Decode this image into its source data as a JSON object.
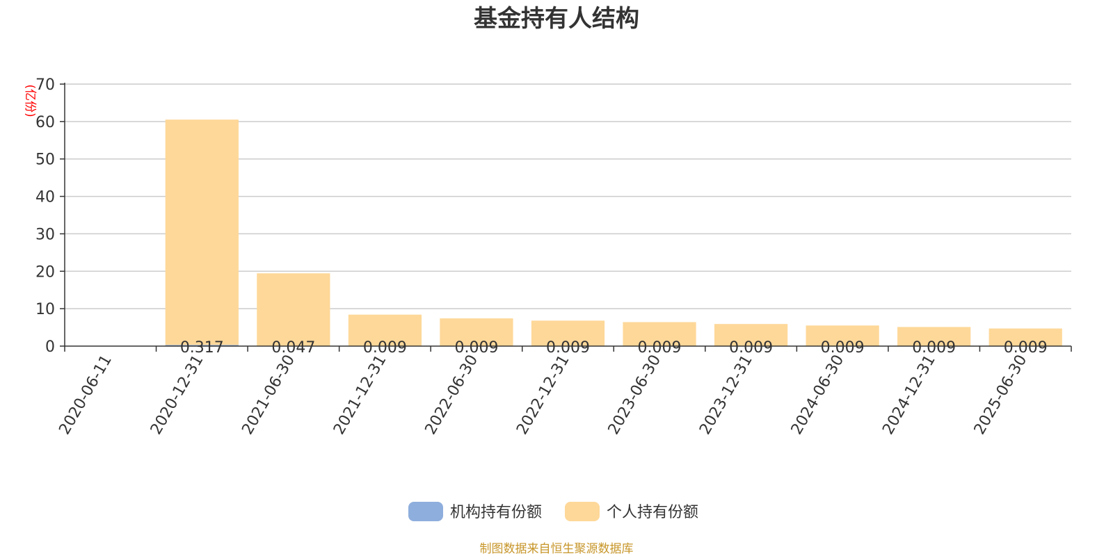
{
  "chart_data": {
    "type": "bar",
    "stacked": true,
    "title": "基金持有人结构",
    "ylabel": "(亿份)",
    "ylim": [
      0,
      70
    ],
    "yticks": [
      0,
      10,
      20,
      30,
      40,
      50,
      60,
      70
    ],
    "grid": true,
    "legend_position": "bottom",
    "categories": [
      "2020-06-11",
      "2020-12-31",
      "2021-06-30",
      "2021-12-31",
      "2022-06-30",
      "2022-12-31",
      "2023-06-30",
      "2023-12-31",
      "2024-06-30",
      "2024-12-31",
      "2025-06-30"
    ],
    "series": [
      {
        "name": "机构持有份额",
        "color": "#8eaedd",
        "values": [
          null,
          0.317,
          0.047,
          0.009,
          0.009,
          0.009,
          0.009,
          0.009,
          0.009,
          0.009,
          0.009
        ],
        "labels": [
          "",
          "0.317",
          "0.047",
          "0.009",
          "0.009",
          "0.009",
          "0.009",
          "0.009",
          "0.009",
          "0.009",
          "0.009"
        ]
      },
      {
        "name": "个人持有份额",
        "color": "#fed899",
        "values": [
          null,
          60.2,
          19.4,
          8.4,
          7.4,
          6.8,
          6.4,
          5.9,
          5.5,
          5.1,
          4.7
        ]
      }
    ],
    "unit_color": "#ff0000",
    "axis_color": "#333333",
    "grid_color": "#cccccc"
  },
  "footer": {
    "source": "制图数据来自恒生聚源数据库",
    "color": "#c7962a"
  }
}
